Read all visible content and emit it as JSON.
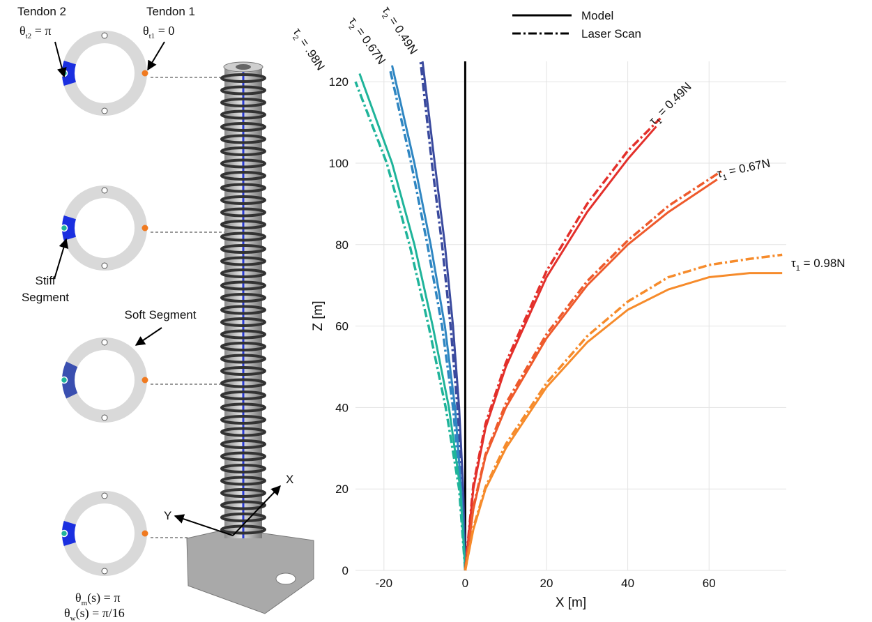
{
  "diagram": {
    "tendon2": "Tendon 2",
    "tendon1": "Tendon 1",
    "theta_t2": {
      "symbol": "θ",
      "sub": "t2",
      "rest": " = π"
    },
    "theta_t1": {
      "symbol": "θ",
      "sub": "t1",
      "rest": " = 0"
    },
    "stiff": "Stiff",
    "stiff2": "Segment",
    "soft": "Soft Segment",
    "axis_x": "X",
    "axis_y": "Y",
    "theta_m": {
      "symbol": "θ",
      "sub": "m",
      "rest": "(s) = π"
    },
    "theta_w": {
      "symbol": "θ",
      "sub": "w",
      "rest": "(s) = π/16"
    }
  },
  "chart_data": {
    "type": "line",
    "xlabel": "X [m]",
    "ylabel": "Z [m]",
    "xlim": [
      -27,
      79
    ],
    "ylim": [
      0,
      125
    ],
    "xticks": [
      -20,
      0,
      20,
      40,
      60
    ],
    "yticks": [
      0,
      20,
      40,
      60,
      80,
      100,
      120
    ],
    "grid": true,
    "legend": [
      {
        "label": "Model",
        "style": "solid"
      },
      {
        "label": "Laser Scan",
        "style": "dashed"
      }
    ],
    "series": [
      {
        "color": "#000000",
        "style": "solid",
        "x": [
          0,
          0
        ],
        "values": [
          0,
          125
        ]
      },
      {
        "color": "#3a4a9e",
        "style": "solid",
        "x": [
          0,
          -0.5,
          -1.5,
          -3,
          -5,
          -7.5,
          -10.5
        ],
        "values": [
          0,
          20,
          40,
          60,
          80,
          100,
          125
        ]
      },
      {
        "color": "#3a4a9e",
        "style": "dashed",
        "x": [
          0,
          -0.6,
          -1.9,
          -3.6,
          -5.7,
          -8.2,
          -11
        ],
        "values": [
          0,
          20,
          40,
          60,
          80,
          100,
          125
        ]
      },
      {
        "color": "#2f86c2",
        "style": "solid",
        "x": [
          0,
          -1,
          -2.5,
          -5,
          -8.5,
          -12.5,
          -18
        ],
        "values": [
          0,
          20,
          40,
          60,
          80,
          100,
          124
        ]
      },
      {
        "color": "#2f86c2",
        "style": "dashed",
        "x": [
          0,
          -1.2,
          -3,
          -5.7,
          -9.3,
          -13.3,
          -18.5
        ],
        "values": [
          0,
          20,
          40,
          60,
          80,
          100,
          123
        ]
      },
      {
        "color": "#1fb49a",
        "style": "solid",
        "x": [
          0,
          -1.2,
          -4,
          -8,
          -12.5,
          -18,
          -26
        ],
        "values": [
          0,
          20,
          40,
          60,
          80,
          100,
          122
        ]
      },
      {
        "color": "#1fb49a",
        "style": "dashed",
        "x": [
          0,
          -1.5,
          -4.8,
          -9,
          -13.7,
          -19.3,
          -27
        ],
        "values": [
          0,
          20,
          40,
          60,
          80,
          100,
          120
        ]
      },
      {
        "color": "#e3302b",
        "style": "solid",
        "x": [
          0,
          2,
          5,
          10,
          20,
          30,
          40,
          47
        ],
        "values": [
          0,
          20,
          35,
          50,
          72,
          88,
          101,
          109
        ]
      },
      {
        "color": "#e3302b",
        "style": "dashed",
        "x": [
          0,
          2,
          5,
          10,
          20,
          30,
          40,
          48
        ],
        "values": [
          0,
          21,
          36,
          51,
          73.5,
          90,
          103,
          111
        ]
      },
      {
        "color": "#ee5a2c",
        "style": "solid",
        "x": [
          0,
          2,
          5,
          10,
          20,
          30,
          40,
          50,
          62
        ],
        "values": [
          0,
          15,
          28,
          40,
          57,
          70,
          80,
          88,
          96
        ]
      },
      {
        "color": "#ee5a2c",
        "style": "dashed",
        "x": [
          0,
          2,
          5,
          10,
          20,
          30,
          40,
          50,
          63
        ],
        "values": [
          0,
          15.5,
          28.5,
          41,
          58,
          71,
          81,
          89.5,
          98
        ]
      },
      {
        "color": "#f68b2b",
        "style": "solid",
        "x": [
          0,
          2,
          5,
          10,
          20,
          30,
          40,
          50,
          60,
          70,
          78
        ],
        "values": [
          0,
          10,
          20,
          30,
          45,
          56,
          64,
          69,
          72,
          73,
          73
        ]
      },
      {
        "color": "#f68b2b",
        "style": "dashed",
        "x": [
          0,
          2,
          5,
          10,
          20,
          30,
          40,
          50,
          60,
          70,
          78
        ],
        "values": [
          0,
          10.5,
          20.5,
          31,
          46,
          57.5,
          66,
          72,
          75,
          76.5,
          77.5
        ]
      }
    ],
    "annotations": [
      {
        "symbol": "τ",
        "sub": "2",
        "rest": " = .98N"
      },
      {
        "symbol": "τ",
        "sub": "2",
        "rest": " = 0.67N"
      },
      {
        "symbol": "τ",
        "sub": "2",
        "rest": " = 0.49N"
      },
      {
        "symbol": "τ",
        "sub": "1",
        "rest": " = 0.49N"
      },
      {
        "symbol": "τ",
        "sub": "1",
        "rest": " = 0.67N"
      },
      {
        "symbol": "τ",
        "sub": "1",
        "rest": " = 0.98N"
      }
    ]
  }
}
